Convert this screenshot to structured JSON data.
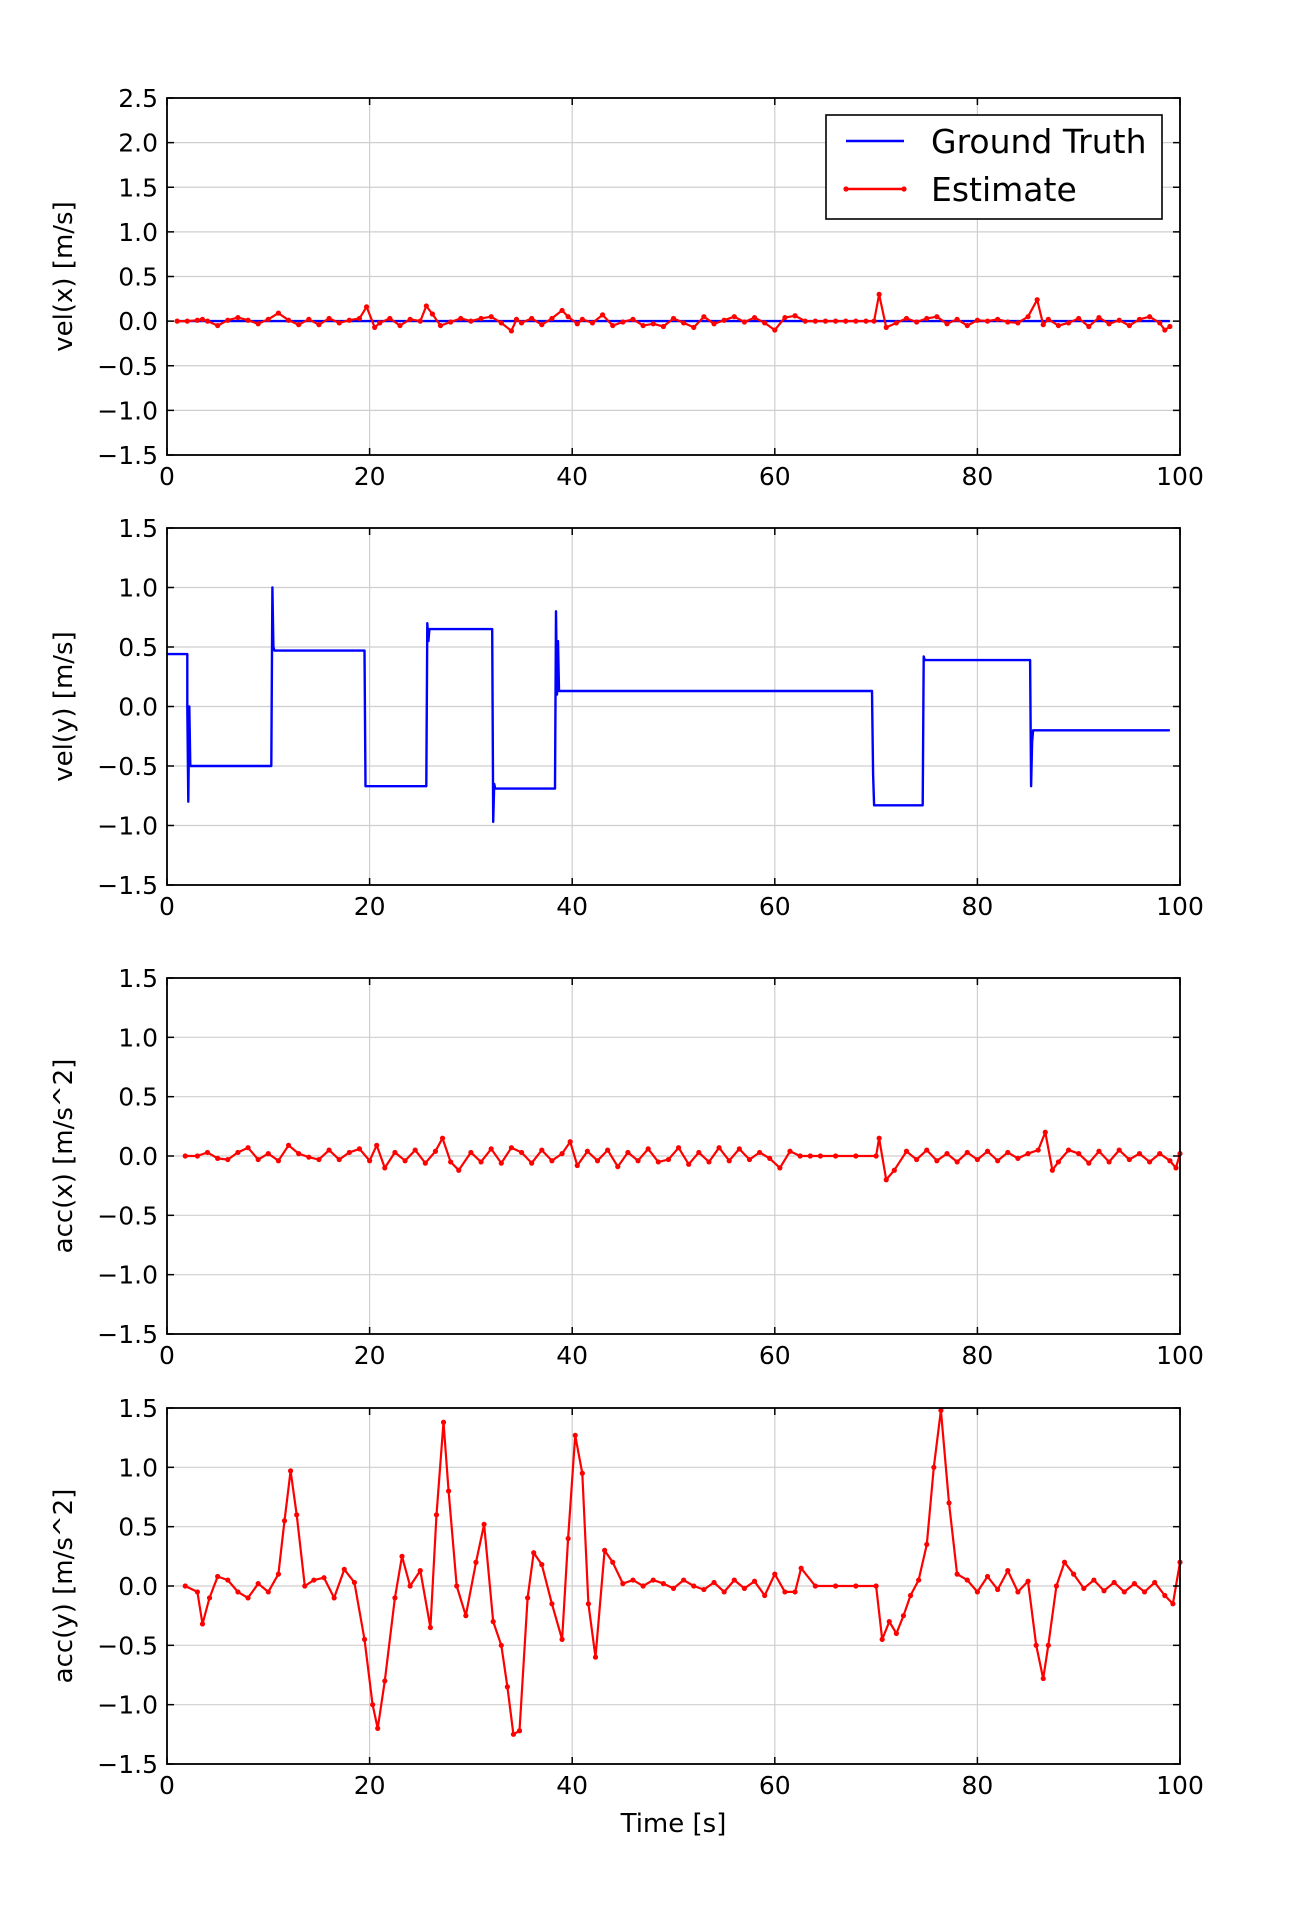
{
  "chart_data": [
    {
      "type": "line",
      "ylabel": "vel(x) [m/s]",
      "xlabel": "",
      "xlim": [
        0,
        100
      ],
      "ylim": [
        -1.5,
        2.5
      ],
      "xticks": [
        0,
        20,
        40,
        60,
        80,
        100
      ],
      "xtick_labels": [
        "0",
        "20",
        "40",
        "60",
        "80",
        "100"
      ],
      "yticks": [
        -1.5,
        -1.0,
        -0.5,
        0.0,
        0.5,
        1.0,
        1.5,
        2.0,
        2.5
      ],
      "ytick_labels": [
        "−1.5",
        "−1.0",
        "−0.5",
        "0.0",
        "0.5",
        "1.0",
        "1.5",
        "2.0",
        "2.5"
      ],
      "grid": true,
      "legend": {
        "placement": "top-right",
        "entries": [
          "Ground Truth",
          "Estimate"
        ]
      },
      "series": [
        {
          "name": "Ground Truth",
          "color": "#0000ff",
          "markers": false,
          "x": [
            1,
            99
          ],
          "y": [
            0.0,
            0.0
          ]
        },
        {
          "name": "Estimate",
          "color": "#ff0000",
          "markers": true,
          "x": [
            1,
            2,
            3,
            3.5,
            4,
            5,
            6,
            7,
            8,
            9,
            10,
            11,
            12,
            13,
            14,
            15,
            16,
            17,
            18,
            19,
            19.7,
            20.5,
            21,
            22,
            23,
            24,
            25,
            25.6,
            26.2,
            27,
            28,
            29,
            30,
            31,
            32,
            33,
            34,
            34.5,
            35,
            36,
            37,
            38,
            39,
            39.6,
            40.5,
            41,
            42,
            43,
            44,
            45,
            46,
            47,
            48,
            49,
            50,
            51,
            52,
            53,
            54,
            55,
            56,
            57,
            58,
            59,
            60,
            61,
            62,
            63,
            64,
            65,
            66,
            67,
            68,
            69,
            69.8,
            70.3,
            71,
            72,
            73,
            74,
            75,
            76,
            77,
            78,
            79,
            80,
            81,
            82,
            83,
            84,
            85,
            85.9,
            86.5,
            87,
            88,
            89,
            90,
            91,
            92,
            93,
            94,
            95,
            96,
            97,
            98,
            98.5,
            99
          ],
          "y": [
            0.0,
            0.0,
            0.01,
            0.02,
            0.0,
            -0.05,
            0.01,
            0.04,
            0.01,
            -0.03,
            0.02,
            0.09,
            0.01,
            -0.04,
            0.02,
            -0.04,
            0.03,
            -0.02,
            0.01,
            0.03,
            0.16,
            -0.07,
            -0.02,
            0.03,
            -0.05,
            0.02,
            0.0,
            0.17,
            0.08,
            -0.05,
            -0.01,
            0.03,
            0.0,
            0.03,
            0.05,
            -0.02,
            -0.11,
            0.02,
            -0.02,
            0.03,
            -0.04,
            0.03,
            0.12,
            0.05,
            -0.03,
            0.02,
            -0.02,
            0.07,
            -0.05,
            -0.01,
            0.02,
            -0.05,
            -0.03,
            -0.06,
            0.03,
            -0.02,
            -0.07,
            0.05,
            -0.03,
            0.01,
            0.05,
            -0.01,
            0.04,
            -0.02,
            -0.1,
            0.04,
            0.06,
            0.0,
            0.0,
            0.0,
            0.0,
            0.0,
            0.0,
            0.0,
            0.0,
            0.3,
            -0.07,
            -0.02,
            0.03,
            -0.01,
            0.03,
            0.05,
            -0.03,
            0.02,
            -0.05,
            0.01,
            0.0,
            0.02,
            -0.01,
            -0.02,
            0.05,
            0.24,
            -0.04,
            0.02,
            -0.05,
            -0.02,
            0.03,
            -0.06,
            0.04,
            -0.03,
            0.01,
            -0.05,
            0.02,
            0.05,
            -0.02,
            -0.1,
            -0.06
          ]
        }
      ]
    },
    {
      "type": "line",
      "ylabel": "vel(y) [m/s]",
      "xlabel": "",
      "xlim": [
        0,
        100
      ],
      "ylim": [
        -1.5,
        1.5
      ],
      "xticks": [
        0,
        20,
        40,
        60,
        80,
        100
      ],
      "xtick_labels": [
        "0",
        "20",
        "40",
        "60",
        "80",
        "100"
      ],
      "yticks": [
        -1.5,
        -1.0,
        -0.5,
        0.0,
        0.5,
        1.0,
        1.5
      ],
      "ytick_labels": [
        "−1.5",
        "−1.0",
        "−0.5",
        "0.0",
        "0.5",
        "1.0",
        "1.5"
      ],
      "grid": true,
      "series": [
        {
          "name": "Ground Truth",
          "color": "#0000ff",
          "markers": false,
          "x": [
            0,
            2,
            2,
            2.1,
            2.2,
            2.3,
            10.3,
            10.4,
            10.5,
            10.6,
            19.5,
            19.6,
            25.6,
            25.7,
            25.8,
            25.9,
            32.1,
            32.2,
            32.3,
            32.4,
            38.3,
            38.4,
            38.5,
            38.6,
            38.7,
            69.6,
            69.7,
            69.8,
            74.6,
            74.7,
            74.8,
            85.2,
            85.3,
            85.4,
            85.5,
            99
          ],
          "y": [
            0.44,
            0.44,
            0.0,
            -0.8,
            0.0,
            -0.5,
            -0.5,
            1.0,
            0.5,
            0.47,
            0.47,
            -0.67,
            -0.67,
            0.7,
            0.55,
            0.65,
            0.65,
            -0.97,
            -0.65,
            -0.69,
            -0.69,
            0.8,
            0.1,
            0.55,
            0.13,
            0.13,
            -0.57,
            -0.83,
            -0.83,
            0.42,
            0.39,
            0.39,
            -0.67,
            -0.3,
            -0.2,
            -0.2
          ]
        }
      ]
    },
    {
      "type": "line",
      "ylabel": "acc(x) [m/s^2]",
      "xlabel": "",
      "xlim": [
        0,
        100
      ],
      "ylim": [
        -1.5,
        1.5
      ],
      "xticks": [
        0,
        20,
        40,
        60,
        80,
        100
      ],
      "xtick_labels": [
        "0",
        "20",
        "40",
        "60",
        "80",
        "100"
      ],
      "yticks": [
        -1.5,
        -1.0,
        -0.5,
        0.0,
        0.5,
        1.0,
        1.5
      ],
      "ytick_labels": [
        "−1.5",
        "−1.0",
        "−0.5",
        "0.0",
        "0.5",
        "1.0",
        "1.5"
      ],
      "grid": true,
      "series": [
        {
          "name": "Estimate",
          "color": "#ff0000",
          "markers": true,
          "x": [
            1.8,
            3,
            4,
            5,
            6,
            7,
            8,
            9,
            10,
            11,
            12,
            13,
            14,
            15,
            16,
            17,
            18,
            19,
            20,
            20.7,
            21.5,
            22.5,
            23.5,
            24.5,
            25.5,
            26.5,
            27.2,
            28,
            28.8,
            30,
            31,
            32,
            33,
            34,
            35,
            36,
            37,
            38,
            39,
            39.8,
            40.5,
            41.5,
            42.5,
            43.5,
            44.5,
            45.5,
            46.5,
            47.5,
            48.5,
            49.5,
            50.5,
            51.5,
            52.5,
            53.5,
            54.5,
            55.5,
            56.5,
            57.5,
            58.5,
            59.5,
            60.5,
            61.5,
            62.5,
            63.5,
            64.5,
            66,
            68,
            70,
            70.3,
            71,
            71.8,
            73,
            74,
            75,
            76,
            77,
            78,
            79,
            80,
            81,
            82,
            83,
            84,
            85,
            86,
            86.7,
            87.4,
            88,
            89,
            90,
            91,
            92,
            93,
            94,
            95,
            96,
            97,
            98,
            99,
            99.6,
            100
          ],
          "y": [
            0.0,
            0.0,
            0.03,
            -0.02,
            -0.03,
            0.03,
            0.07,
            -0.03,
            0.02,
            -0.04,
            0.09,
            0.02,
            -0.01,
            -0.03,
            0.05,
            -0.03,
            0.03,
            0.06,
            -0.04,
            0.09,
            -0.1,
            0.03,
            -0.04,
            0.05,
            -0.06,
            0.04,
            0.15,
            -0.05,
            -0.12,
            0.03,
            -0.05,
            0.06,
            -0.06,
            0.07,
            0.03,
            -0.06,
            0.05,
            -0.04,
            0.02,
            0.12,
            -0.08,
            0.04,
            -0.04,
            0.05,
            -0.09,
            0.03,
            -0.04,
            0.06,
            -0.05,
            -0.03,
            0.07,
            -0.07,
            0.03,
            -0.05,
            0.07,
            -0.04,
            0.06,
            -0.03,
            0.03,
            -0.02,
            -0.1,
            0.04,
            0.0,
            0.0,
            0.0,
            0.0,
            0.0,
            0.0,
            0.15,
            -0.2,
            -0.12,
            0.04,
            -0.03,
            0.05,
            -0.04,
            0.02,
            -0.05,
            0.03,
            -0.03,
            0.04,
            -0.04,
            0.03,
            -0.02,
            0.02,
            0.05,
            0.2,
            -0.12,
            -0.05,
            0.05,
            0.02,
            -0.06,
            0.04,
            -0.05,
            0.05,
            -0.03,
            0.02,
            -0.05,
            0.02,
            -0.04,
            -0.1,
            0.02
          ]
        }
      ]
    },
    {
      "type": "line",
      "ylabel": "acc(y) [m/s^2]",
      "xlabel": "Time [s]",
      "xlim": [
        0,
        100
      ],
      "ylim": [
        -1.5,
        1.5
      ],
      "xticks": [
        0,
        20,
        40,
        60,
        80,
        100
      ],
      "xtick_labels": [
        "0",
        "20",
        "40",
        "60",
        "80",
        "100"
      ],
      "yticks": [
        -1.5,
        -1.0,
        -0.5,
        0.0,
        0.5,
        1.0,
        1.5
      ],
      "ytick_labels": [
        "−1.5",
        "−1.0",
        "−0.5",
        "0.0",
        "0.5",
        "1.0",
        "1.5"
      ],
      "grid": true,
      "series": [
        {
          "name": "Estimate",
          "color": "#ff0000",
          "markers": true,
          "x": [
            1.8,
            3,
            3.5,
            4.2,
            5,
            6,
            7,
            8,
            9,
            10,
            11,
            11.6,
            12.2,
            12.8,
            13.6,
            14.5,
            15.5,
            16.5,
            17.5,
            18.5,
            19.5,
            20.3,
            20.8,
            21.5,
            22.5,
            23.2,
            24,
            25,
            26,
            26.6,
            27.3,
            27.8,
            28.6,
            29.5,
            30.5,
            31.3,
            32.2,
            33,
            33.6,
            34.2,
            34.8,
            35.6,
            36.2,
            37,
            38,
            39,
            39.6,
            40.3,
            41,
            41.6,
            42.3,
            43.2,
            44,
            45,
            46,
            47,
            48,
            49,
            50,
            51,
            52,
            53,
            54,
            55,
            56,
            57,
            58,
            59,
            60,
            61,
            62,
            62.6,
            64,
            66,
            68,
            70,
            70.6,
            71.3,
            72,
            72.7,
            73.4,
            74.2,
            75,
            75.7,
            76.4,
            77.2,
            78,
            79,
            80,
            81,
            82,
            83,
            84,
            85,
            85.8,
            86.5,
            87,
            87.8,
            88.6,
            89.5,
            90.5,
            91.5,
            92.5,
            93.5,
            94.5,
            95.5,
            96.5,
            97.5,
            98.5,
            99.3,
            100
          ],
          "y": [
            0.0,
            -0.05,
            -0.32,
            -0.1,
            0.08,
            0.05,
            -0.05,
            -0.1,
            0.02,
            -0.05,
            0.1,
            0.55,
            0.97,
            0.6,
            0.0,
            0.05,
            0.07,
            -0.1,
            0.14,
            0.03,
            -0.45,
            -1.0,
            -1.2,
            -0.8,
            -0.1,
            0.25,
            0.0,
            0.13,
            -0.35,
            0.6,
            1.38,
            0.8,
            0.0,
            -0.25,
            0.2,
            0.52,
            -0.3,
            -0.5,
            -0.85,
            -1.25,
            -1.22,
            -0.1,
            0.28,
            0.18,
            -0.15,
            -0.45,
            0.4,
            1.27,
            0.95,
            -0.15,
            -0.6,
            0.3,
            0.2,
            0.02,
            0.05,
            0.0,
            0.05,
            0.02,
            -0.02,
            0.05,
            0.0,
            -0.03,
            0.03,
            -0.05,
            0.05,
            -0.02,
            0.04,
            -0.08,
            0.1,
            -0.05,
            -0.05,
            0.15,
            0.0,
            0.0,
            0.0,
            0.0,
            -0.45,
            -0.3,
            -0.4,
            -0.25,
            -0.08,
            0.05,
            0.35,
            1.0,
            1.48,
            0.7,
            0.1,
            0.05,
            -0.05,
            0.08,
            -0.03,
            0.13,
            -0.05,
            0.04,
            -0.5,
            -0.78,
            -0.5,
            0.0,
            0.2,
            0.1,
            -0.02,
            0.05,
            -0.04,
            0.03,
            -0.05,
            0.02,
            -0.05,
            0.03,
            -0.08,
            -0.15,
            0.2
          ]
        }
      ]
    }
  ]
}
